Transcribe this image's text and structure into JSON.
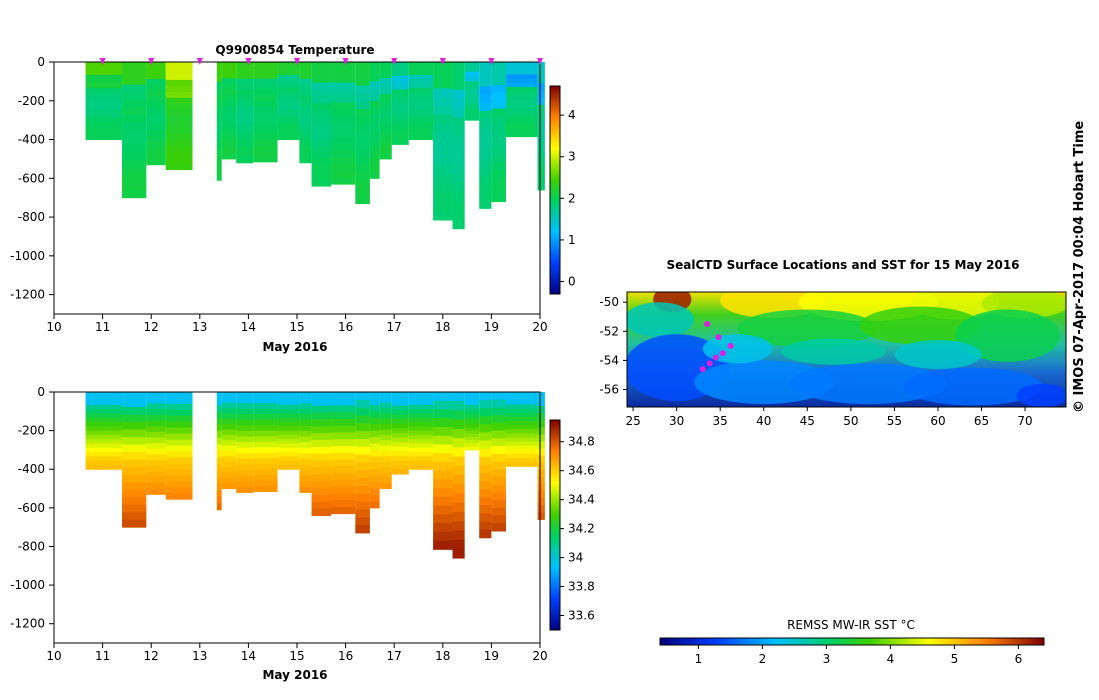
{
  "credit": "© IMOS 07-Apr-2017 00:04 Hobart Time",
  "colors": {
    "station_marker": "#e020e0",
    "axis": "#000000"
  },
  "chart_data": [
    {
      "type": "heatmap",
      "title": "Q9900854  Temperature",
      "xlabel": "May 2016",
      "ylabel": "",
      "xlim": [
        10,
        20
      ],
      "ylim": [
        -1300,
        0
      ],
      "x_ticks": [
        "10",
        "11",
        "12",
        "13",
        "14",
        "15",
        "16",
        "17",
        "18",
        "19",
        "20"
      ],
      "y_ticks": [
        "0",
        "-200",
        "-400",
        "-600",
        "-800",
        "-1000",
        "-1200"
      ],
      "colorbar": {
        "min": -0.3,
        "max": 4.7,
        "ticks": [
          "0",
          "1",
          "2",
          "3",
          "4"
        ]
      },
      "profiles": [
        {
          "t": 10.65,
          "t2": 11.4,
          "bottom": -400,
          "surface": 2.3,
          "deep": 1.9
        },
        {
          "t": 11.4,
          "t2": 11.9,
          "bottom": -700,
          "surface": 2.1,
          "deep": 2.0
        },
        {
          "t": 11.9,
          "t2": 12.3,
          "bottom": -530,
          "surface": 2.2,
          "deep": 2.0
        },
        {
          "t": 12.3,
          "t2": 12.85,
          "bottom": -555,
          "surface": 2.8,
          "deep": 2.3
        },
        {
          "t": 13.35,
          "t2": 13.45,
          "bottom": -610,
          "surface": 2.2,
          "deep": 2.0
        },
        {
          "t": 13.45,
          "t2": 13.75,
          "bottom": -500,
          "surface": 2.2,
          "deep": 2.0
        },
        {
          "t": 13.75,
          "t2": 14.1,
          "bottom": -520,
          "surface": 2.1,
          "deep": 1.9
        },
        {
          "t": 14.1,
          "t2": 14.6,
          "bottom": -515,
          "surface": 2.1,
          "deep": 2.0
        },
        {
          "t": 14.6,
          "t2": 15.05,
          "bottom": -400,
          "surface": 2.0,
          "deep": 1.9
        },
        {
          "t": 15.05,
          "t2": 15.3,
          "bottom": -520,
          "surface": 2.0,
          "deep": 1.9
        },
        {
          "t": 15.3,
          "t2": 15.7,
          "bottom": -640,
          "surface": 1.9,
          "deep": 1.9
        },
        {
          "t": 15.7,
          "t2": 16.2,
          "bottom": -630,
          "surface": 1.9,
          "deep": 2.0
        },
        {
          "t": 16.2,
          "t2": 16.5,
          "bottom": -730,
          "surface": 1.9,
          "deep": 2.0
        },
        {
          "t": 16.5,
          "t2": 16.7,
          "bottom": -600,
          "surface": 1.8,
          "deep": 2.0
        },
        {
          "t": 16.7,
          "t2": 16.95,
          "bottom": -500,
          "surface": 1.8,
          "deep": 2.0
        },
        {
          "t": 16.95,
          "t2": 17.3,
          "bottom": -425,
          "surface": 1.6,
          "deep": 1.9
        },
        {
          "t": 17.3,
          "t2": 17.8,
          "bottom": -400,
          "surface": 1.8,
          "deep": 1.9
        },
        {
          "t": 17.8,
          "t2": 18.2,
          "bottom": -815,
          "surface": 1.8,
          "deep": 1.8
        },
        {
          "t": 18.2,
          "t2": 18.45,
          "bottom": -860,
          "surface": 1.7,
          "deep": 1.8
        },
        {
          "t": 18.45,
          "t2": 18.75,
          "bottom": -300,
          "surface": 1.5,
          "deep": 1.8
        },
        {
          "t": 18.75,
          "t2": 19.0,
          "bottom": -755,
          "surface": 1.3,
          "deep": 1.8
        },
        {
          "t": 19.0,
          "t2": 19.3,
          "bottom": -720,
          "surface": 1.4,
          "deep": 1.9
        },
        {
          "t": 19.3,
          "t2": 19.95,
          "bottom": -385,
          "surface": 1.2,
          "deep": 1.9
        },
        {
          "t": 19.95,
          "t2": 20.1,
          "bottom": -660,
          "surface": 1.3,
          "deep": 1.8
        }
      ],
      "station_ticks": [
        11.0,
        12.0,
        13.0,
        14.0,
        15.0,
        16.0,
        17.0,
        18.0,
        19.0,
        20.0
      ]
    },
    {
      "type": "heatmap",
      "title": "",
      "xlabel": "May 2016",
      "ylabel": "",
      "xlim": [
        10,
        20
      ],
      "ylim": [
        -1300,
        0
      ],
      "x_ticks": [
        "10",
        "11",
        "12",
        "13",
        "14",
        "15",
        "16",
        "17",
        "18",
        "19",
        "20"
      ],
      "y_ticks": [
        "0",
        "-200",
        "-400",
        "-600",
        "-800",
        "-1000",
        "-1200"
      ],
      "colorbar": {
        "min": 33.5,
        "max": 34.95,
        "ticks": [
          "33.6",
          "33.8",
          "34",
          "34.2",
          "34.4",
          "34.6",
          "34.8"
        ]
      },
      "profiles": [
        {
          "t": 10.65,
          "t2": 11.4,
          "bottom": -400
        },
        {
          "t": 11.4,
          "t2": 11.9,
          "bottom": -700
        },
        {
          "t": 11.9,
          "t2": 12.3,
          "bottom": -530
        },
        {
          "t": 12.3,
          "t2": 12.85,
          "bottom": -555
        },
        {
          "t": 13.35,
          "t2": 13.45,
          "bottom": -610
        },
        {
          "t": 13.45,
          "t2": 13.75,
          "bottom": -500
        },
        {
          "t": 13.75,
          "t2": 14.1,
          "bottom": -520
        },
        {
          "t": 14.1,
          "t2": 14.6,
          "bottom": -515
        },
        {
          "t": 14.6,
          "t2": 15.05,
          "bottom": -400
        },
        {
          "t": 15.05,
          "t2": 15.3,
          "bottom": -520
        },
        {
          "t": 15.3,
          "t2": 15.7,
          "bottom": -640
        },
        {
          "t": 15.7,
          "t2": 16.2,
          "bottom": -630
        },
        {
          "t": 16.2,
          "t2": 16.5,
          "bottom": -730
        },
        {
          "t": 16.5,
          "t2": 16.7,
          "bottom": -600
        },
        {
          "t": 16.7,
          "t2": 16.95,
          "bottom": -500
        },
        {
          "t": 16.95,
          "t2": 17.3,
          "bottom": -425
        },
        {
          "t": 17.3,
          "t2": 17.8,
          "bottom": -400
        },
        {
          "t": 17.8,
          "t2": 18.2,
          "bottom": -815
        },
        {
          "t": 18.2,
          "t2": 18.45,
          "bottom": -860
        },
        {
          "t": 18.45,
          "t2": 18.75,
          "bottom": -300
        },
        {
          "t": 18.75,
          "t2": 19.0,
          "bottom": -755
        },
        {
          "t": 19.0,
          "t2": 19.3,
          "bottom": -720
        },
        {
          "t": 19.3,
          "t2": 19.95,
          "bottom": -385
        },
        {
          "t": 19.95,
          "t2": 20.1,
          "bottom": -660
        }
      ]
    },
    {
      "type": "heatmap",
      "title": "SealCTD Surface Locations and SST for 15 May 2016",
      "xlabel": "",
      "ylabel": "",
      "xlim": [
        24.3,
        74.7
      ],
      "ylim": [
        -57.2,
        -49.3
      ],
      "x_ticks": [
        "25",
        "30",
        "35",
        "40",
        "45",
        "50",
        "55",
        "60",
        "65",
        "70"
      ],
      "y_ticks": [
        "-50",
        "-52",
        "-54",
        "-56"
      ],
      "colorbar": {
        "label": "REMSS MW-IR SST °C",
        "min": 0.4,
        "max": 6.4,
        "ticks": [
          "1",
          "2",
          "3",
          "4",
          "5",
          "6"
        ]
      },
      "track": [
        [
          33.0,
          -54.6
        ],
        [
          33.8,
          -54.2
        ],
        [
          34.5,
          -53.8
        ],
        [
          35.3,
          -53.5
        ],
        [
          36.2,
          -53.0
        ],
        [
          34.8,
          -52.4
        ],
        [
          33.5,
          -51.5
        ]
      ]
    }
  ]
}
